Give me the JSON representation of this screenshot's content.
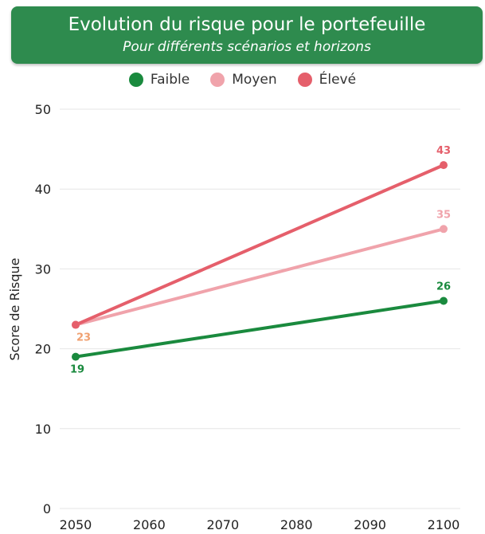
{
  "header": {
    "title": "Evolution du risque pour le portefeuille",
    "subtitle": "Pour différents scénarios et horizons"
  },
  "colors": {
    "header_bg": "#2e8b4e",
    "faible": "#1a8a3e",
    "moyen": "#f0a3ab",
    "eleve": "#e55f6b",
    "label_orange": "#f0a070",
    "grid": "#e6e6e6"
  },
  "chart_data": {
    "type": "line",
    "title": "Evolution du risque pour le portefeuille",
    "subtitle": "Pour différents scénarios et horizons",
    "xlabel": "",
    "ylabel": "Score de Risque",
    "x": [
      2050,
      2100
    ],
    "xticks": [
      2050,
      2060,
      2070,
      2080,
      2090,
      2100
    ],
    "xlim": [
      2050,
      2100
    ],
    "yticks": [
      0,
      10,
      20,
      30,
      40,
      50
    ],
    "ylim": [
      0,
      50
    ],
    "grid": "horizontal",
    "legend_position": "top-center",
    "series": [
      {
        "name": "Faible",
        "color": "#1a8a3e",
        "values": [
          19,
          26
        ],
        "labels": [
          "19",
          "26"
        ],
        "label_colors": [
          "#1a8a3e",
          "#1a8a3e"
        ]
      },
      {
        "name": "Moyen",
        "color": "#f0a3ab",
        "values": [
          23,
          35
        ],
        "labels": [
          "23",
          "35"
        ],
        "label_colors": [
          "#f0a070",
          "#f0a3ab"
        ]
      },
      {
        "name": "Élevé",
        "color": "#e55f6b",
        "values": [
          23,
          43
        ],
        "labels": [
          "",
          "43"
        ],
        "label_colors": [
          "#e55f6b",
          "#e55f6b"
        ]
      }
    ]
  }
}
